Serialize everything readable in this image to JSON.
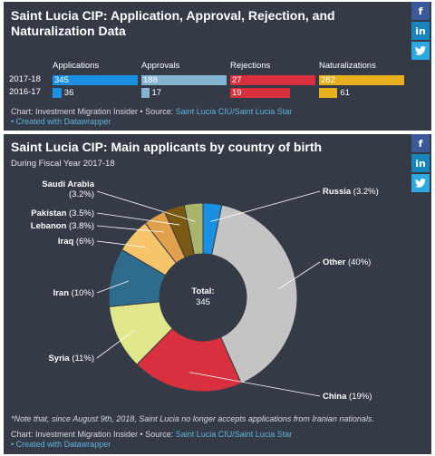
{
  "panel1": {
    "title": "Saint Lucia CIP: Application, Approval, Rejection, and Naturalization Data",
    "columns": [
      "Applications",
      "Approvals",
      "Rejections",
      "Naturalizations"
    ],
    "rows": [
      {
        "label": "2017-18",
        "values": [
          "345",
          "188",
          "27",
          "282"
        ]
      },
      {
        "label": "2016-17",
        "values": [
          "36",
          "17",
          "19",
          "61"
        ]
      }
    ],
    "footer_source": "Chart: Investment Migration Insider • Source: ",
    "footer_link": "Saint Lucia CIU/Saint Lucia Star",
    "footer_created": "• Created with Datawrapper"
  },
  "panel2": {
    "title": "Saint Lucia CIP: Main applicants by country of birth",
    "subtitle": "During Fiscal Year 2017-18",
    "center_label": "Total:",
    "center_value": "345",
    "note": "*Note that, since August 9th, 2018, Saint Lucia no longer accepts applications from Iranian nationals.",
    "footer_source": "Chart: Investment Migration Insider • Source: ",
    "footer_link": "Saint Lucia CIU/Saint Lucia Star",
    "footer_created": "• Created with Datawrapper"
  },
  "share": {
    "facebook": "f",
    "linkedin": "in",
    "twitter": "t"
  },
  "colors": {
    "applications": "#1a90e2",
    "approvals": "#83b5d1",
    "rejections": "#d8303e",
    "naturalizations": "#e8b01e",
    "background": "#343b47"
  },
  "chart_data": [
    {
      "type": "bar",
      "title": "Saint Lucia CIP: Application, Approval, Rejection, and Naturalization Data",
      "categories": [
        "2017-18",
        "2016-17"
      ],
      "series": [
        {
          "name": "Applications",
          "values": [
            345,
            36
          ],
          "color": "#1a90e2"
        },
        {
          "name": "Approvals",
          "values": [
            188,
            17
          ],
          "color": "#83b5d1"
        },
        {
          "name": "Rejections",
          "values": [
            27,
            19
          ],
          "color": "#d8303e"
        },
        {
          "name": "Naturalizations",
          "values": [
            282,
            61
          ],
          "color": "#e8b01e"
        }
      ]
    },
    {
      "type": "pie",
      "title": "Saint Lucia CIP: Main applicants by country of birth",
      "subtitle": "During Fiscal Year 2017-18",
      "slices": [
        {
          "label": "Russia",
          "display": "Russia (3.2%)",
          "value": 3.2,
          "color": "#1a90e2"
        },
        {
          "label": "Other",
          "display": "Other (40%)",
          "value": 40,
          "color": "#c4c4c4"
        },
        {
          "label": "China",
          "display": "China (19%)",
          "value": 19,
          "color": "#d8303e"
        },
        {
          "label": "Syria",
          "display": "Syria (11%)",
          "value": 11,
          "color": "#e1e88c"
        },
        {
          "label": "Iran",
          "display": "Iran (10%)",
          "value": 10,
          "color": "#2f6b8c"
        },
        {
          "label": "Iraq",
          "display": "Iraq (6%)",
          "value": 6,
          "color": "#f5c46b"
        },
        {
          "label": "Lebanon",
          "display": "Lebanon (3.8%)",
          "value": 3.8,
          "color": "#e1a04b"
        },
        {
          "label": "Pakistan",
          "display": "Pakistan (3.5%)",
          "value": 3.5,
          "color": "#7a5a12"
        },
        {
          "label": "Saudi Arabia",
          "display": "Saudi Arabia (3.2%)",
          "value": 3.2,
          "color": "#a8b56a"
        }
      ]
    }
  ]
}
